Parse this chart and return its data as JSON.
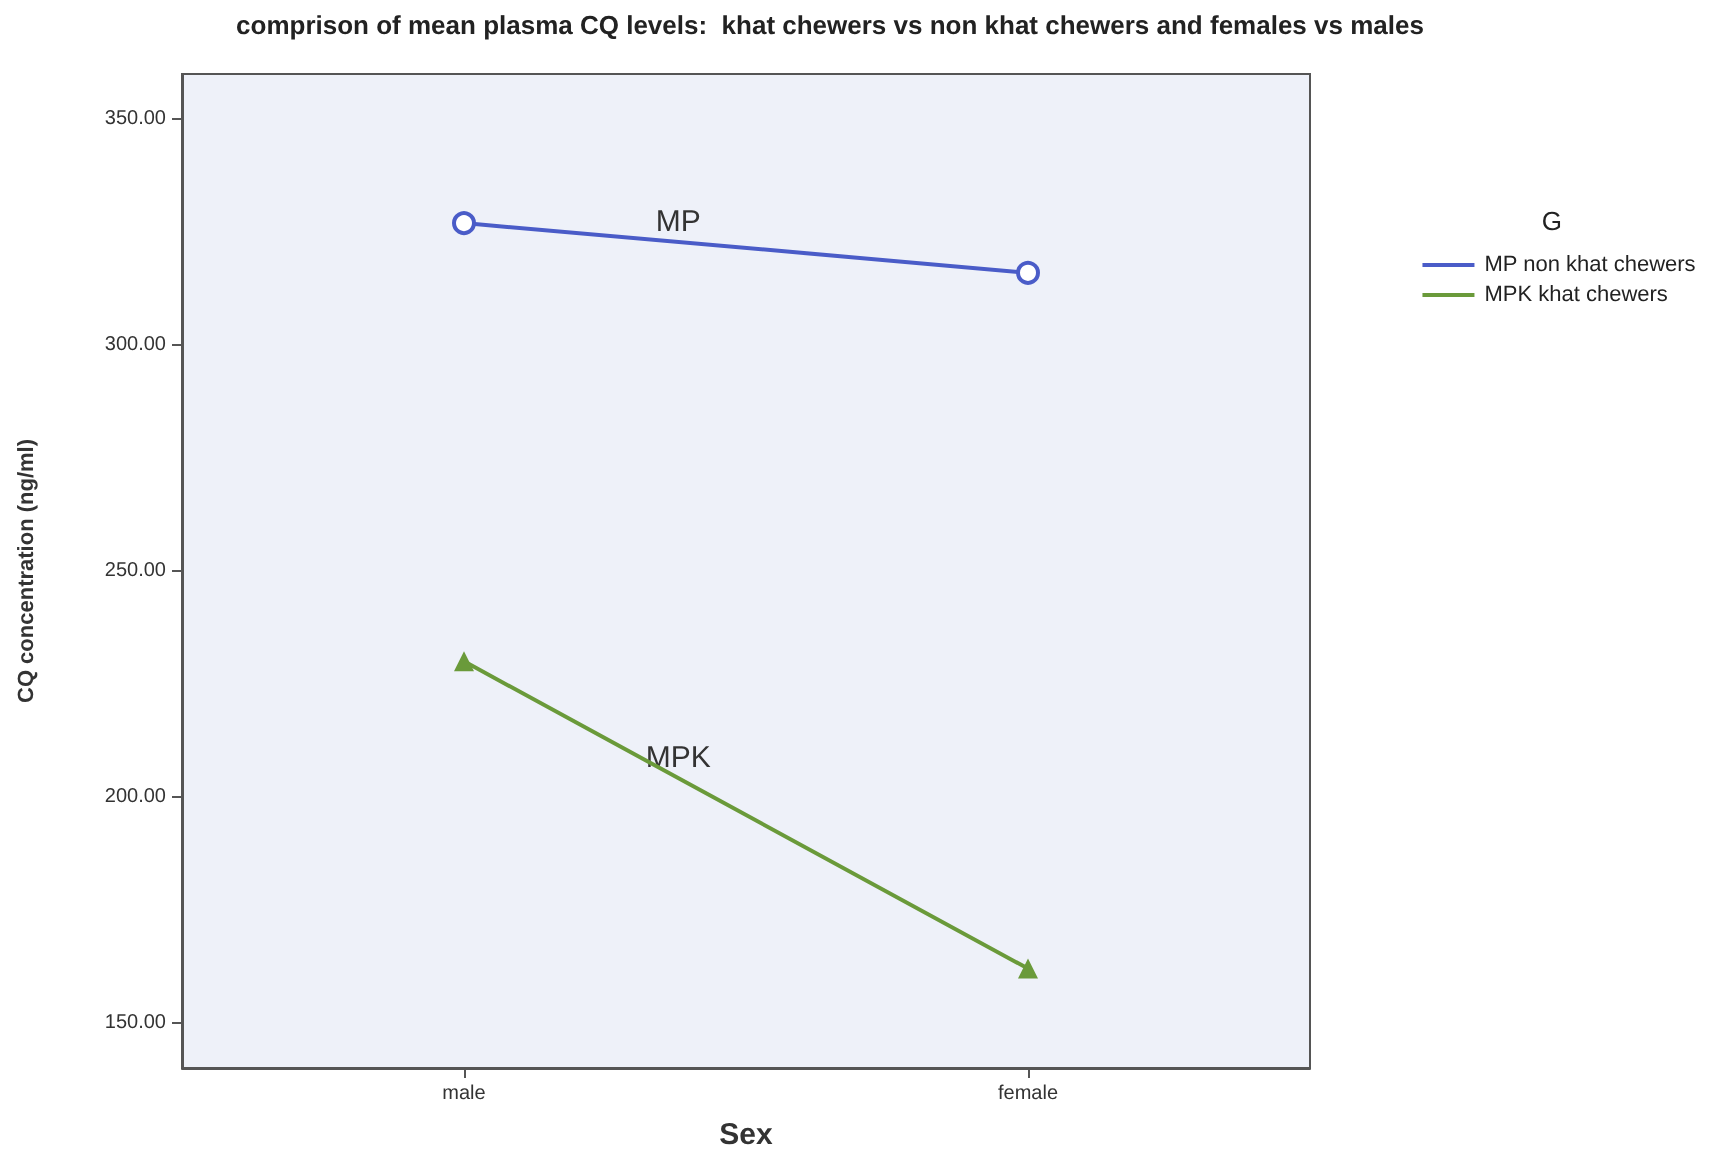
{
  "chart_data": {
    "type": "line",
    "title": "comprison of mean plasma CQ levels:  khat chewers vs non khat chewers and females vs males",
    "xlabel": "Sex",
    "ylabel": "CQ concentration (ng/ml)",
    "legend_title": "G",
    "categories": [
      "male",
      "female"
    ],
    "series": [
      {
        "name": "MP non khat chewers",
        "color": "#4a5cc8",
        "values": [
          327,
          316
        ],
        "marker": "circle"
      },
      {
        "name": "MPK khat chewers",
        "color": "#6a9a3a",
        "values": [
          230,
          162
        ],
        "marker": "triangle"
      }
    ],
    "annotations": [
      "MP",
      "MPK"
    ],
    "ylim": [
      140,
      360
    ],
    "yticks": [
      {
        "value": 150,
        "label": "150.00"
      },
      {
        "value": 200,
        "label": "200.00"
      },
      {
        "value": 250,
        "label": "250.00"
      },
      {
        "value": 300,
        "label": "300.00"
      },
      {
        "value": 350,
        "label": "350.00"
      }
    ],
    "grid": false,
    "legend": "right",
    "line_style": "solid"
  }
}
